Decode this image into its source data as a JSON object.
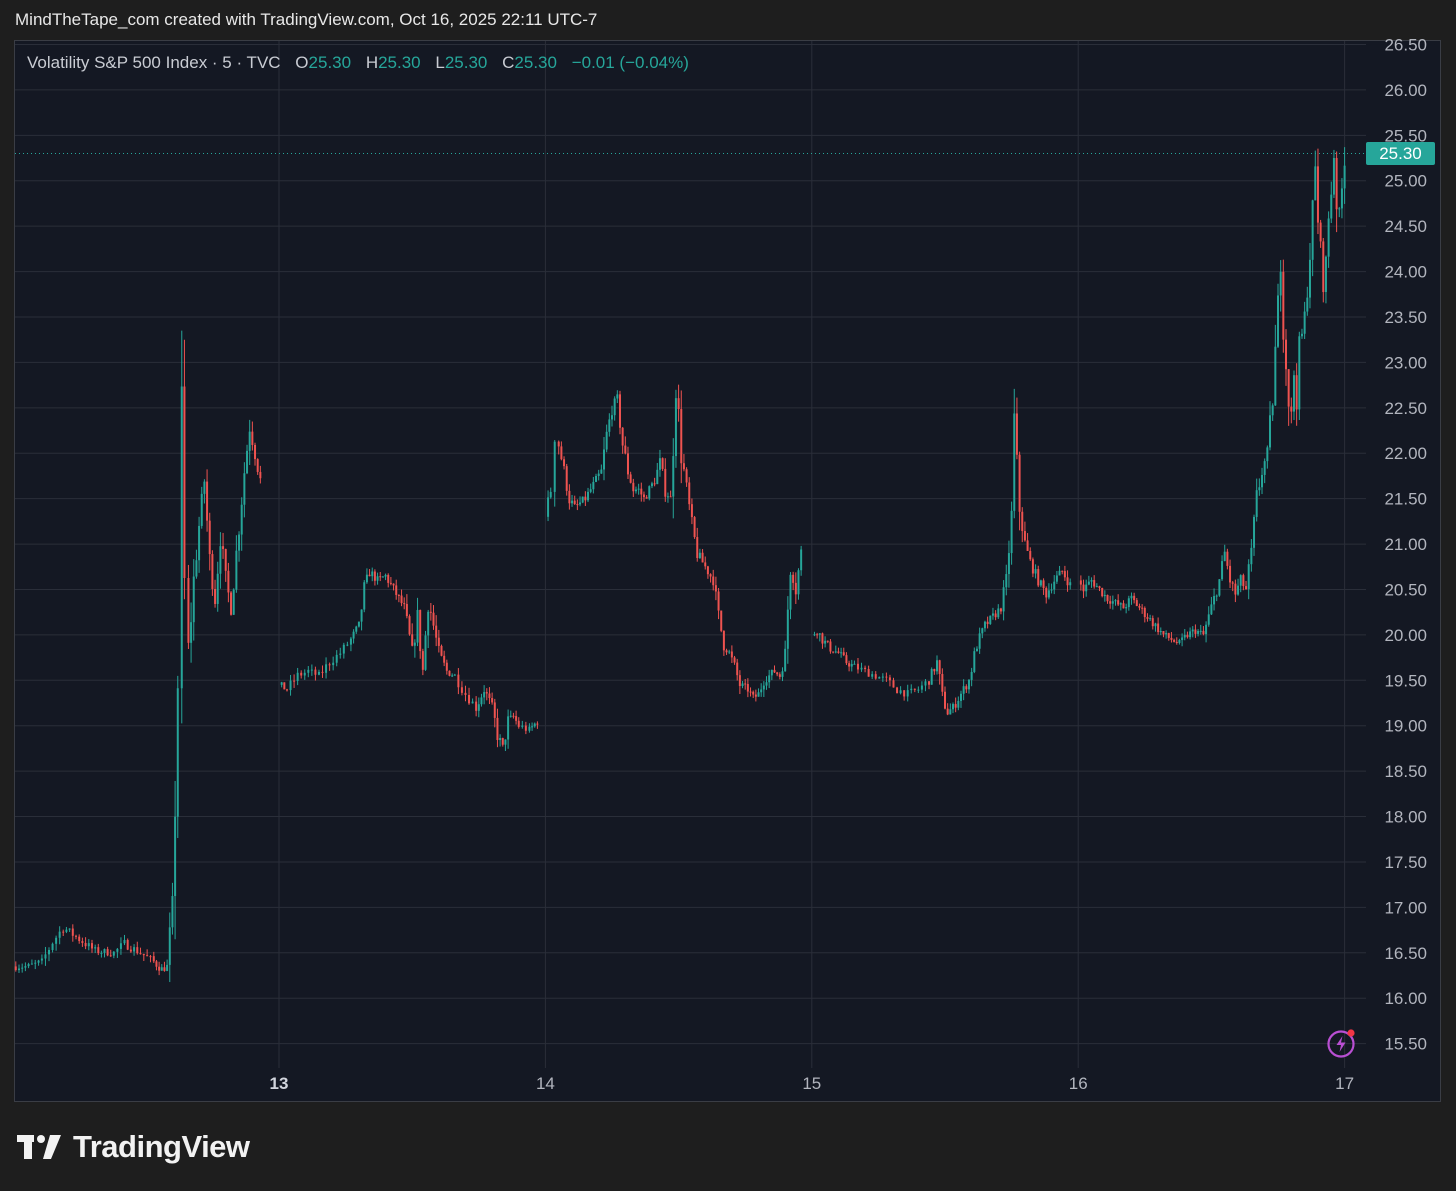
{
  "header": {
    "caption": "MindTheTape_com created with TradingView.com, Oct 16, 2025 22:11 UTC-7"
  },
  "legend": {
    "symbol": "Volatility S&P 500 Index · 5 · TVC",
    "o_label": "O",
    "o_value": "25.30",
    "h_label": "H",
    "h_value": "25.30",
    "l_label": "L",
    "l_value": "25.30",
    "c_label": "C",
    "c_value": "25.30",
    "change": "−0.01 (−0.04%)"
  },
  "last_price_badge": "25.30",
  "brand": {
    "name": "TradingView"
  },
  "colors": {
    "background": "#141823",
    "grid": "#2a2e39",
    "up": "#26a69a",
    "down": "#ef5350",
    "axis_text": "#b2b5be"
  },
  "chart_data": {
    "type": "candlestick",
    "title": "Volatility S&P 500 Index",
    "interval": "5",
    "ylim": [
      15.25,
      26.6
    ],
    "y_ticks": [
      "15.50",
      "16.00",
      "16.50",
      "17.00",
      "17.50",
      "18.00",
      "18.50",
      "19.00",
      "19.50",
      "20.00",
      "20.50",
      "21.00",
      "21.50",
      "22.00",
      "22.50",
      "23.00",
      "23.50",
      "24.00",
      "24.50",
      "25.00",
      "25.50",
      "26.00",
      "26.50"
    ],
    "x_ticks": [
      "13",
      "14",
      "15",
      "16",
      "17"
    ],
    "x_range": [
      12.0,
      17.08
    ],
    "last_price": 25.3,
    "sessions": [
      {
        "day": 12,
        "path": [
          [
            12.0,
            16.35
          ],
          [
            12.06,
            16.35
          ],
          [
            12.11,
            16.4
          ],
          [
            12.15,
            16.62
          ],
          [
            12.19,
            16.78
          ],
          [
            12.25,
            16.65
          ],
          [
            12.31,
            16.52
          ],
          [
            12.38,
            16.5
          ],
          [
            12.42,
            16.6
          ],
          [
            12.48,
            16.5
          ],
          [
            12.53,
            16.4
          ],
          [
            12.56,
            16.32
          ],
          [
            12.58,
            16.35
          ],
          [
            12.6,
            17.0
          ],
          [
            12.61,
            18.2
          ],
          [
            12.62,
            19.5
          ],
          [
            12.635,
            22.1
          ],
          [
            12.645,
            20.5
          ],
          [
            12.66,
            19.8
          ],
          [
            12.68,
            20.6
          ],
          [
            12.7,
            21.2
          ],
          [
            12.72,
            21.7
          ],
          [
            12.74,
            20.8
          ],
          [
            12.76,
            20.4
          ],
          [
            12.78,
            21.1
          ],
          [
            12.8,
            20.6
          ],
          [
            12.82,
            20.3
          ],
          [
            12.85,
            21.2
          ],
          [
            12.87,
            21.8
          ],
          [
            12.89,
            22.3
          ],
          [
            12.91,
            22.0
          ],
          [
            12.93,
            21.7
          ]
        ]
      },
      {
        "day": 13,
        "path": [
          [
            13.0,
            19.45
          ],
          [
            13.03,
            19.4
          ],
          [
            13.07,
            19.55
          ],
          [
            13.11,
            19.6
          ],
          [
            13.15,
            19.55
          ],
          [
            13.19,
            19.7
          ],
          [
            13.23,
            19.8
          ],
          [
            13.27,
            19.95
          ],
          [
            13.3,
            20.1
          ],
          [
            13.32,
            20.5
          ],
          [
            13.34,
            20.7
          ],
          [
            13.37,
            20.6
          ],
          [
            13.4,
            20.65
          ],
          [
            13.43,
            20.5
          ],
          [
            13.45,
            20.4
          ],
          [
            13.47,
            20.3
          ],
          [
            13.5,
            19.8
          ],
          [
            13.52,
            20.2
          ],
          [
            13.54,
            19.6
          ],
          [
            13.56,
            20.4
          ],
          [
            13.58,
            20.1
          ],
          [
            13.6,
            19.8
          ],
          [
            13.63,
            19.6
          ],
          [
            13.66,
            19.55
          ],
          [
            13.7,
            19.35
          ],
          [
            13.74,
            19.2
          ],
          [
            13.77,
            19.4
          ],
          [
            13.8,
            19.2
          ],
          [
            13.82,
            18.9
          ],
          [
            13.84,
            18.75
          ],
          [
            13.86,
            19.05
          ],
          [
            13.88,
            19.1
          ],
          [
            13.9,
            19.0
          ],
          [
            13.94,
            18.95
          ],
          [
            13.97,
            19.05
          ]
        ]
      },
      {
        "day": 14,
        "path": [
          [
            14.0,
            21.3
          ],
          [
            14.02,
            21.6
          ],
          [
            14.035,
            22.3
          ],
          [
            14.05,
            22.1
          ],
          [
            14.07,
            21.8
          ],
          [
            14.09,
            21.5
          ],
          [
            14.11,
            21.4
          ],
          [
            14.13,
            21.45
          ],
          [
            14.15,
            21.5
          ],
          [
            14.17,
            21.6
          ],
          [
            14.19,
            21.7
          ],
          [
            14.21,
            21.8
          ],
          [
            14.23,
            22.2
          ],
          [
            14.25,
            22.5
          ],
          [
            14.27,
            22.6
          ],
          [
            14.29,
            22.1
          ],
          [
            14.31,
            21.8
          ],
          [
            14.33,
            21.6
          ],
          [
            14.35,
            21.6
          ],
          [
            14.37,
            21.5
          ],
          [
            14.39,
            21.6
          ],
          [
            14.41,
            21.7
          ],
          [
            14.43,
            21.9
          ],
          [
            14.45,
            21.6
          ],
          [
            14.47,
            21.5
          ],
          [
            14.49,
            22.8
          ],
          [
            14.51,
            22.0
          ],
          [
            14.53,
            21.6
          ],
          [
            14.55,
            21.2
          ],
          [
            14.57,
            20.9
          ],
          [
            14.59,
            20.8
          ],
          [
            14.61,
            20.7
          ],
          [
            14.63,
            20.6
          ],
          [
            14.65,
            20.2
          ],
          [
            14.67,
            19.9
          ],
          [
            14.69,
            19.8
          ],
          [
            14.71,
            19.65
          ],
          [
            14.73,
            19.45
          ],
          [
            14.76,
            19.4
          ],
          [
            14.78,
            19.3
          ],
          [
            14.8,
            19.35
          ],
          [
            14.82,
            19.5
          ],
          [
            14.84,
            19.55
          ],
          [
            14.86,
            19.6
          ],
          [
            14.88,
            19.55
          ],
          [
            14.9,
            19.8
          ],
          [
            14.92,
            20.8
          ],
          [
            14.94,
            20.5
          ],
          [
            14.96,
            20.9
          ]
        ]
      },
      {
        "day": 15,
        "path": [
          [
            15.0,
            20.0
          ],
          [
            15.02,
            20.05
          ],
          [
            15.04,
            19.95
          ],
          [
            15.07,
            19.85
          ],
          [
            15.1,
            19.8
          ],
          [
            15.13,
            19.7
          ],
          [
            15.16,
            19.65
          ],
          [
            15.2,
            19.6
          ],
          [
            15.24,
            19.55
          ],
          [
            15.28,
            19.5
          ],
          [
            15.32,
            19.4
          ],
          [
            15.36,
            19.35
          ],
          [
            15.4,
            19.4
          ],
          [
            15.44,
            19.5
          ],
          [
            15.47,
            19.7
          ],
          [
            15.49,
            19.3
          ],
          [
            15.51,
            19.15
          ],
          [
            15.53,
            19.2
          ],
          [
            15.56,
            19.35
          ],
          [
            15.59,
            19.5
          ],
          [
            15.62,
            19.9
          ],
          [
            15.65,
            20.1
          ],
          [
            15.68,
            20.2
          ],
          [
            15.71,
            20.3
          ],
          [
            15.73,
            20.6
          ],
          [
            15.75,
            21.3
          ],
          [
            15.76,
            22.3
          ],
          [
            15.78,
            21.4
          ],
          [
            15.8,
            21.0
          ],
          [
            15.82,
            20.8
          ],
          [
            15.85,
            20.6
          ],
          [
            15.88,
            20.45
          ],
          [
            15.91,
            20.6
          ],
          [
            15.94,
            20.7
          ],
          [
            15.97,
            20.55
          ]
        ]
      },
      {
        "day": 16,
        "path": [
          [
            16.0,
            20.6
          ],
          [
            16.02,
            20.5
          ],
          [
            16.05,
            20.6
          ],
          [
            16.08,
            20.5
          ],
          [
            16.11,
            20.4
          ],
          [
            16.14,
            20.35
          ],
          [
            16.17,
            20.3
          ],
          [
            16.2,
            20.4
          ],
          [
            16.23,
            20.3
          ],
          [
            16.26,
            20.2
          ],
          [
            16.29,
            20.1
          ],
          [
            16.32,
            20.0
          ],
          [
            16.35,
            19.95
          ],
          [
            16.38,
            19.9
          ],
          [
            16.41,
            20.0
          ],
          [
            16.44,
            20.05
          ],
          [
            16.47,
            20.0
          ],
          [
            16.5,
            20.3
          ],
          [
            16.53,
            20.6
          ],
          [
            16.55,
            20.9
          ],
          [
            16.57,
            20.6
          ],
          [
            16.59,
            20.45
          ],
          [
            16.61,
            20.6
          ],
          [
            16.63,
            20.5
          ],
          [
            16.65,
            20.9
          ],
          [
            16.67,
            21.5
          ],
          [
            16.69,
            21.8
          ],
          [
            16.71,
            22.0
          ],
          [
            16.73,
            22.6
          ],
          [
            16.75,
            23.6
          ],
          [
            16.76,
            24.2
          ],
          [
            16.77,
            23.5
          ],
          [
            16.78,
            23.0
          ],
          [
            16.79,
            22.6
          ],
          [
            16.8,
            22.4
          ],
          [
            16.81,
            22.9
          ],
          [
            16.82,
            22.6
          ],
          [
            16.83,
            23.1
          ],
          [
            16.85,
            23.5
          ],
          [
            16.87,
            24.2
          ],
          [
            16.89,
            25.1
          ],
          [
            16.9,
            24.6
          ],
          [
            16.91,
            24.2
          ],
          [
            16.92,
            23.9
          ],
          [
            16.93,
            24.1
          ],
          [
            16.94,
            24.6
          ],
          [
            16.95,
            24.9
          ],
          [
            16.96,
            25.3
          ],
          [
            16.97,
            24.8
          ],
          [
            16.98,
            24.6
          ],
          [
            16.99,
            24.9
          ],
          [
            17.0,
            25.3
          ]
        ]
      }
    ]
  }
}
